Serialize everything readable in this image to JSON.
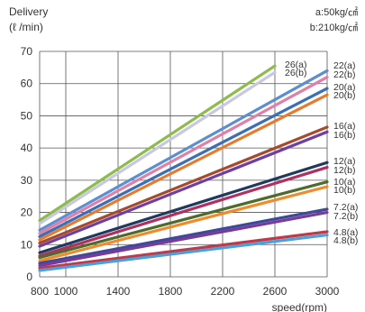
{
  "chart_data": {
    "type": "line",
    "ylabel_line1": "Delivery",
    "ylabel_line2": "(ℓ /min)",
    "xlabel": "speed(rpm)",
    "legend_notes": [
      "a:50kg/㎠",
      "b:210kg/㎠"
    ],
    "xlim": [
      800,
      3000
    ],
    "ylim": [
      0,
      70
    ],
    "x_ticks": [
      "800",
      "1000",
      "1400",
      "1800",
      "2200",
      "2600",
      "3000"
    ],
    "y_ticks": [
      "0",
      "10",
      "20",
      "30",
      "40",
      "50",
      "60",
      "70"
    ],
    "grid": true,
    "series": [
      {
        "name": "26(a)",
        "color": "#8dbb4c",
        "x": [
          800,
          2600
        ],
        "y": [
          17.5,
          65.5
        ]
      },
      {
        "name": "26(b)",
        "color": "#c8c8e0",
        "x": [
          800,
          2600
        ],
        "y": [
          16.5,
          63.5
        ]
      },
      {
        "name": "22(a)",
        "color": "#5b8fd0",
        "x": [
          800,
          3000
        ],
        "y": [
          14.5,
          64.0
        ]
      },
      {
        "name": "22(b)",
        "color": "#e07fa8",
        "x": [
          800,
          3000
        ],
        "y": [
          13.5,
          62.0
        ]
      },
      {
        "name": "20(a)",
        "color": "#3b6fb5",
        "x": [
          800,
          3000
        ],
        "y": [
          12.5,
          58.5
        ]
      },
      {
        "name": "20(b)",
        "color": "#e87a2e",
        "x": [
          800,
          3000
        ],
        "y": [
          11.5,
          56.5
        ]
      },
      {
        "name": "16(a)",
        "color": "#a54a2a",
        "x": [
          800,
          3000
        ],
        "y": [
          10.5,
          46.5
        ]
      },
      {
        "name": "16(b)",
        "color": "#6f3ea0",
        "x": [
          800,
          3000
        ],
        "y": [
          9.5,
          45.0
        ]
      },
      {
        "name": "12(a)",
        "color": "#1f3a5f",
        "x": [
          800,
          3000
        ],
        "y": [
          7.5,
          35.5
        ]
      },
      {
        "name": "12(b)",
        "color": "#b03060",
        "x": [
          800,
          3000
        ],
        "y": [
          6.5,
          34.0
        ]
      },
      {
        "name": "10(a)",
        "color": "#4e6b2e",
        "x": [
          800,
          3000
        ],
        "y": [
          6.0,
          29.5
        ]
      },
      {
        "name": "10(b)",
        "color": "#f08a2a",
        "x": [
          800,
          3000
        ],
        "y": [
          5.0,
          28.0
        ]
      },
      {
        "name": "7.2(a)",
        "color": "#3d4a9a",
        "x": [
          800,
          3000
        ],
        "y": [
          4.2,
          21.0
        ]
      },
      {
        "name": "7.2(b)",
        "color": "#7a3a98",
        "x": [
          800,
          3000
        ],
        "y": [
          3.5,
          20.0
        ]
      },
      {
        "name": "4.8(a)",
        "color": "#c0394a",
        "x": [
          800,
          3000
        ],
        "y": [
          2.7,
          14.0
        ]
      },
      {
        "name": "4.8(b)",
        "color": "#4aa0d8",
        "x": [
          800,
          3000
        ],
        "y": [
          2.0,
          13.0
        ]
      }
    ]
  }
}
